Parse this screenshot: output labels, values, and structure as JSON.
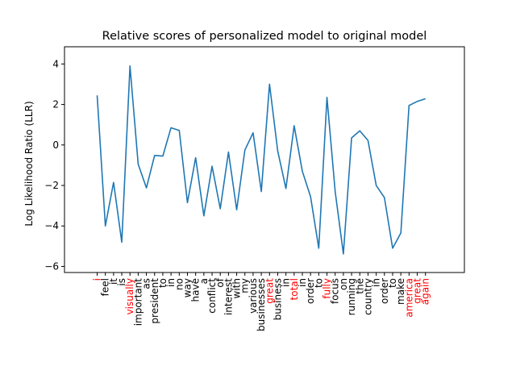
{
  "chart_data": {
    "type": "line",
    "title": "Relative scores of personalized model to original model",
    "xlabel": "",
    "ylabel": "Log Likelihood Ratio (LLR)",
    "ylim": [
      -6.3,
      4.85
    ],
    "yticks": [
      4,
      2,
      0,
      -2,
      -4,
      -6
    ],
    "ytick_labels": [
      "4",
      "2",
      "0",
      "−2",
      "−4",
      "−6"
    ],
    "grid": false,
    "line_color": "#1f77b4",
    "highlight_color": "#ff0000",
    "normal_color": "#000000",
    "categories": [
      "i",
      "feel",
      "it",
      "is",
      "visually",
      "important",
      "as",
      "president",
      "to",
      "in",
      "no",
      "way",
      "have",
      "a",
      "conflict",
      "of",
      "interest",
      "with",
      "my",
      "various",
      "businesses",
      "great",
      "business",
      "in",
      "total",
      "in",
      "order",
      "to",
      "fully",
      "focus",
      "on",
      "running",
      "the",
      "country",
      "in",
      "order",
      "to",
      "make",
      "america",
      "great",
      "again"
    ],
    "highlighted": [
      0,
      4,
      21,
      24,
      28,
      38,
      39,
      40
    ],
    "series": [
      {
        "values": [
          2.45,
          -4.0,
          -1.85,
          -4.8,
          3.9,
          -0.95,
          -2.12,
          -0.52,
          -0.55,
          0.85,
          0.72,
          -2.85,
          -0.63,
          -3.5,
          -1.05,
          -3.15,
          -0.35,
          -3.2,
          -0.25,
          0.6,
          -2.3,
          3.0,
          -0.3,
          -2.15,
          0.95,
          -1.3,
          -2.55,
          -5.1,
          2.35,
          -2.3,
          -5.38,
          0.35,
          0.7,
          0.22,
          -2.0,
          -2.6,
          -5.1,
          -4.35,
          1.95,
          2.15,
          2.28
        ]
      }
    ]
  }
}
